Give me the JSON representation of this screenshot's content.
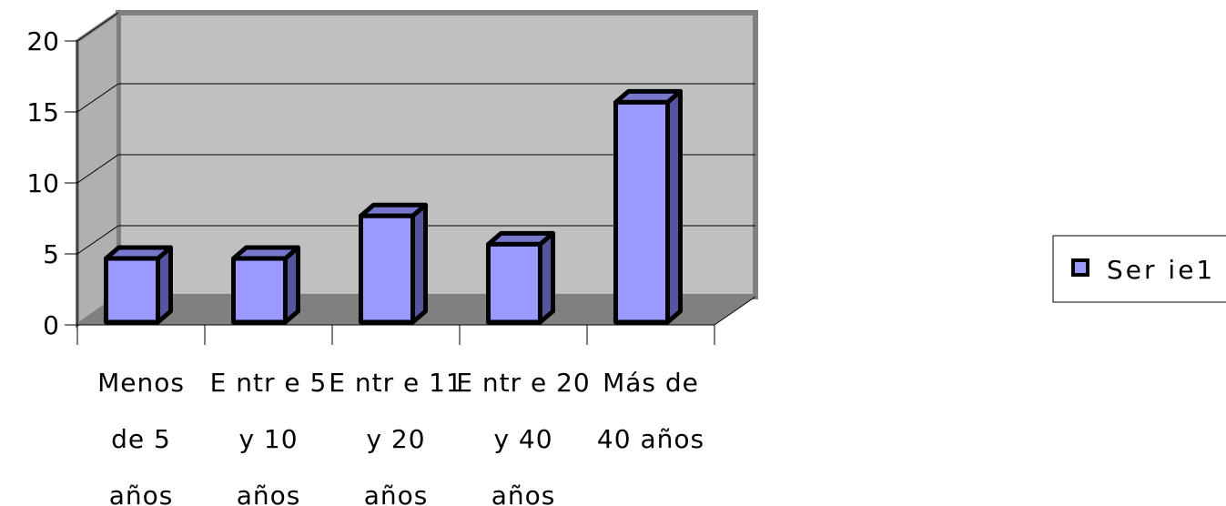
{
  "chart_data": {
    "type": "bar",
    "title": "",
    "xlabel": "",
    "ylabel": "",
    "ylim": [
      0,
      20
    ],
    "yticks": [
      0,
      5,
      10,
      15,
      20
    ],
    "grid": true,
    "style": "3d-column",
    "legend_position": "right",
    "categories": [
      [
        "Menos",
        "de 5",
        "años"
      ],
      [
        "E ntr e 5",
        "y 10",
        "años"
      ],
      [
        "E ntr e 11",
        "y 20",
        "años"
      ],
      [
        "E ntr e 20",
        "y 40",
        "años"
      ],
      [
        "Más de",
        "40 años"
      ]
    ],
    "series": [
      {
        "name": "Ser ie1",
        "values": [
          5,
          5,
          8,
          6,
          16
        ]
      }
    ],
    "colors": {
      "bar_front": "#9999ff",
      "bar_side": "#55559f",
      "bar_top": "#7777cc",
      "wall": "#c0c0c0",
      "floor": "#808080",
      "gridline": "#000000",
      "outline": "#000000"
    }
  }
}
